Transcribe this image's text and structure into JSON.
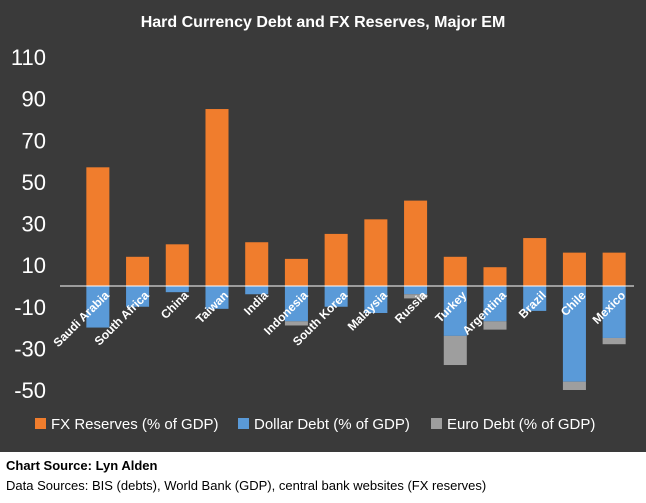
{
  "chart_data": {
    "type": "bar",
    "stacked": true,
    "title": "Hard Currency Debt and FX Reserves, Major EM",
    "xlabel": "",
    "ylabel": "",
    "ylim": [
      -60,
      110
    ],
    "yticks": [
      110,
      90,
      70,
      50,
      30,
      10,
      -10,
      -30,
      -50
    ],
    "grid": false,
    "legend_position": "bottom",
    "categories": [
      "Saudi Arabia",
      "South Africa",
      "China",
      "Taiwan",
      "India",
      "Indonesia",
      "South Korea",
      "Malaysia",
      "Russia",
      "Turkey",
      "Argentina",
      "Brazil",
      "Chile",
      "Mexico"
    ],
    "series": [
      {
        "name": "FX Reserves (% of GDP)",
        "color": "#f07d2d",
        "values": [
          57,
          14,
          20,
          85,
          21,
          13,
          25,
          32,
          41,
          14,
          9,
          23,
          16,
          16
        ]
      },
      {
        "name": "Dollar Debt (% of GDP)",
        "color": "#5a9ad8",
        "values": [
          -20,
          -10,
          -3,
          -11,
          -4,
          -17,
          -10,
          -13,
          -4,
          -24,
          -17,
          -12,
          -46,
          -25
        ]
      },
      {
        "name": "Euro Debt (% of GDP)",
        "color": "#9e9e9e",
        "values": [
          0,
          0,
          0,
          0,
          0,
          -2,
          0,
          0,
          -2,
          -14,
          -4,
          0,
          -4,
          -3
        ]
      }
    ],
    "colors": {
      "background": "#3a3a3a",
      "text": "#ffffff",
      "zero_line": "#ffffff"
    }
  },
  "footer": {
    "chart_source": "Chart Source: Lyn Alden",
    "data_sources": "Data Sources: BIS (debts), World Bank (GDP), central bank websites (FX reserves)"
  }
}
